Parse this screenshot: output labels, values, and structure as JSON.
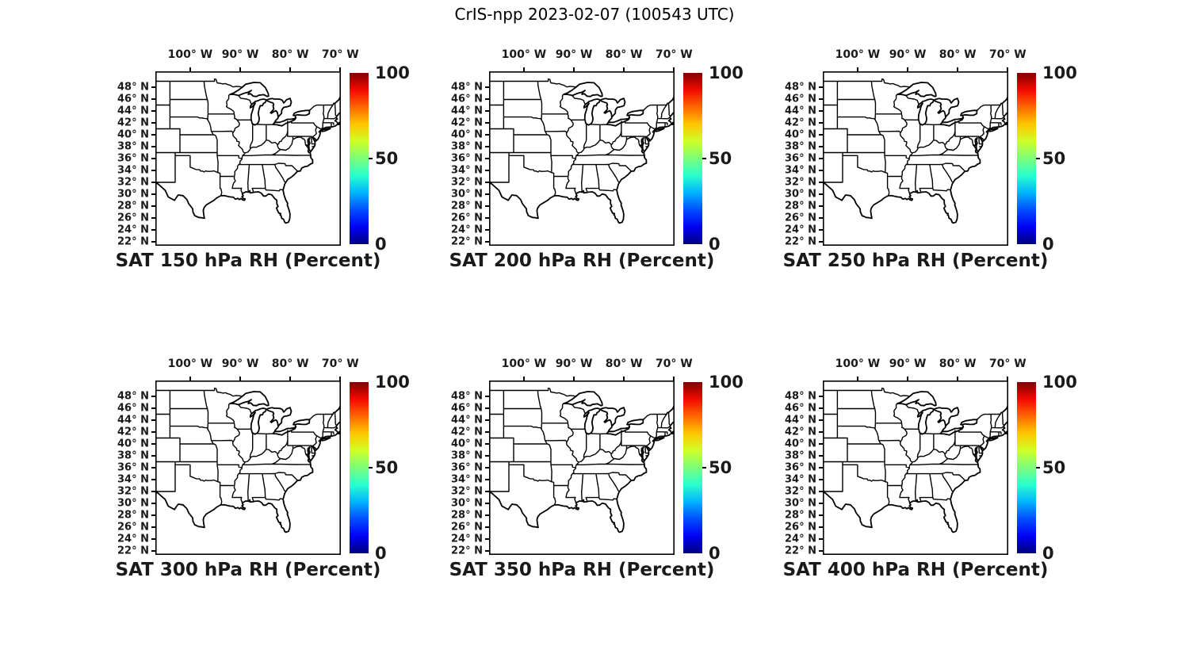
{
  "title": "CrIS-npp 2023-02-07 (100543 UTC)",
  "panels": [
    {
      "id": "sat-150-hpa-rh",
      "caption": "SAT 150 hPa RH (Percent)"
    },
    {
      "id": "sat-200-hpa-rh",
      "caption": "SAT 200 hPa RH (Percent)"
    },
    {
      "id": "sat-250-hpa-rh",
      "caption": "SAT 250 hPa RH (Percent)"
    },
    {
      "id": "sat-300-hpa-rh",
      "caption": "SAT 300 hPa RH (Percent)"
    },
    {
      "id": "sat-350-hpa-rh",
      "caption": "SAT 350 hPa RH (Percent)"
    },
    {
      "id": "sat-400-hpa-rh",
      "caption": "SAT 400 hPa RH (Percent)"
    }
  ],
  "axes": {
    "lon_labels": [
      "100° W",
      "90° W",
      "80° W",
      "70° W"
    ],
    "lat_labels": [
      "48° N",
      "46° N",
      "44° N",
      "42° N",
      "40° N",
      "38° N",
      "36° N",
      "34° N",
      "32° N",
      "30° N",
      "28° N",
      "26° N",
      "24° N",
      "22° N"
    ]
  },
  "colorbar": {
    "tick_labels": [
      "100",
      "50",
      "0"
    ],
    "range": [
      0,
      100
    ],
    "colormap": "jet",
    "stops": [
      "#000080",
      "#0000f3",
      "#004dff",
      "#00b3ff",
      "#29ffce",
      "#7bff7b",
      "#ceff29",
      "#ffc600",
      "#ff6800",
      "#f30900",
      "#800000"
    ]
  },
  "chart_data": {
    "type": "heatmap",
    "subtype": "geographic map grid (2 rows x 3 columns) of US state boundaries; no RH field values are plotted (maps are empty outlines)",
    "figure_title": "CrIS-npp 2023-02-07 (100543 UTC)",
    "panel_titles": [
      "SAT 150 hPa RH (Percent)",
      "SAT 200 hPa RH (Percent)",
      "SAT 250 hPa RH (Percent)",
      "SAT 300 hPa RH (Percent)",
      "SAT 350 hPa RH (Percent)",
      "SAT 400 hPa RH (Percent)"
    ],
    "x_tick_labels_deg_west": [
      100,
      90,
      80,
      70
    ],
    "y_tick_labels_deg_north": [
      48,
      46,
      44,
      42,
      40,
      38,
      36,
      34,
      32,
      30,
      28,
      26,
      24,
      22
    ],
    "map_extent": {
      "lon_west": -107.0,
      "lon_east": -69.9,
      "lat_south": 21.3,
      "lat_north": 50.7
    },
    "colorbar": {
      "range": [
        0,
        100
      ],
      "ticks": [
        0,
        50,
        100
      ],
      "colormap": "jet"
    },
    "values": []
  }
}
